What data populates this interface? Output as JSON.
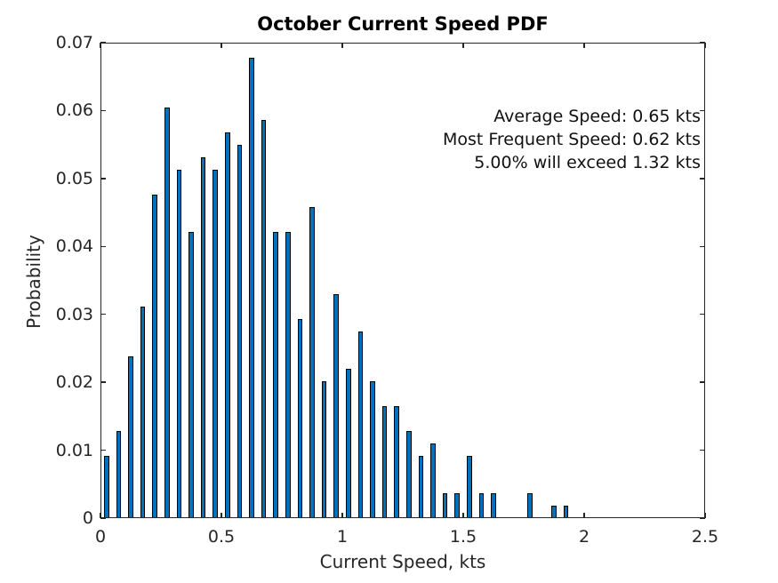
{
  "chart_data": {
    "type": "bar",
    "title": "October Current Speed PDF",
    "xlabel": "Current Speed, kts",
    "ylabel": "Probability",
    "xlim": [
      0,
      2.5
    ],
    "ylim": [
      0,
      0.07
    ],
    "xticks": [
      0,
      0.5,
      1,
      1.5,
      2,
      2.5
    ],
    "xtick_labels": [
      "0",
      "0.5",
      "1",
      "1.5",
      "2",
      "2.5"
    ],
    "yticks": [
      0,
      0.01,
      0.02,
      0.03,
      0.04,
      0.05,
      0.06,
      0.07
    ],
    "ytick_labels": [
      "0",
      "0.01",
      "0.02",
      "0.03",
      "0.04",
      "0.05",
      "0.06",
      "0.07"
    ],
    "grid": false,
    "legend": null,
    "bin_width": 0.05,
    "bar_display_width": 0.021,
    "bin_centers": [
      0.025,
      0.075,
      0.125,
      0.175,
      0.225,
      0.275,
      0.325,
      0.375,
      0.425,
      0.475,
      0.525,
      0.575,
      0.625,
      0.675,
      0.725,
      0.775,
      0.825,
      0.875,
      0.925,
      0.975,
      1.025,
      1.075,
      1.125,
      1.175,
      1.225,
      1.275,
      1.325,
      1.375,
      1.425,
      1.475,
      1.525,
      1.575,
      1.625,
      1.675,
      1.725,
      1.775,
      1.825,
      1.875,
      1.925
    ],
    "values": [
      0.00916,
      0.01282,
      0.02381,
      0.03114,
      0.04762,
      0.06044,
      0.05128,
      0.04212,
      0.05311,
      0.05128,
      0.05678,
      0.05495,
      0.06777,
      0.05861,
      0.04212,
      0.04212,
      0.0293,
      0.04579,
      0.02015,
      0.03297,
      0.02198,
      0.02747,
      0.02015,
      0.01648,
      0.01648,
      0.01282,
      0.00916,
      0.01099,
      0.00366,
      0.00366,
      0.00916,
      0.00366,
      0.00366,
      0,
      0,
      0.00366,
      0,
      0.00183,
      0.00183
    ],
    "annotations": [
      "Average Speed: 0.65 kts",
      "Most Frequent Speed: 0.62 kts",
      "5.00% will exceed 1.32 kts"
    ],
    "colors": {
      "bar_fill": "#0072BD",
      "bar_edge": "#000000",
      "axis": "#262626",
      "text": "#262626"
    }
  }
}
